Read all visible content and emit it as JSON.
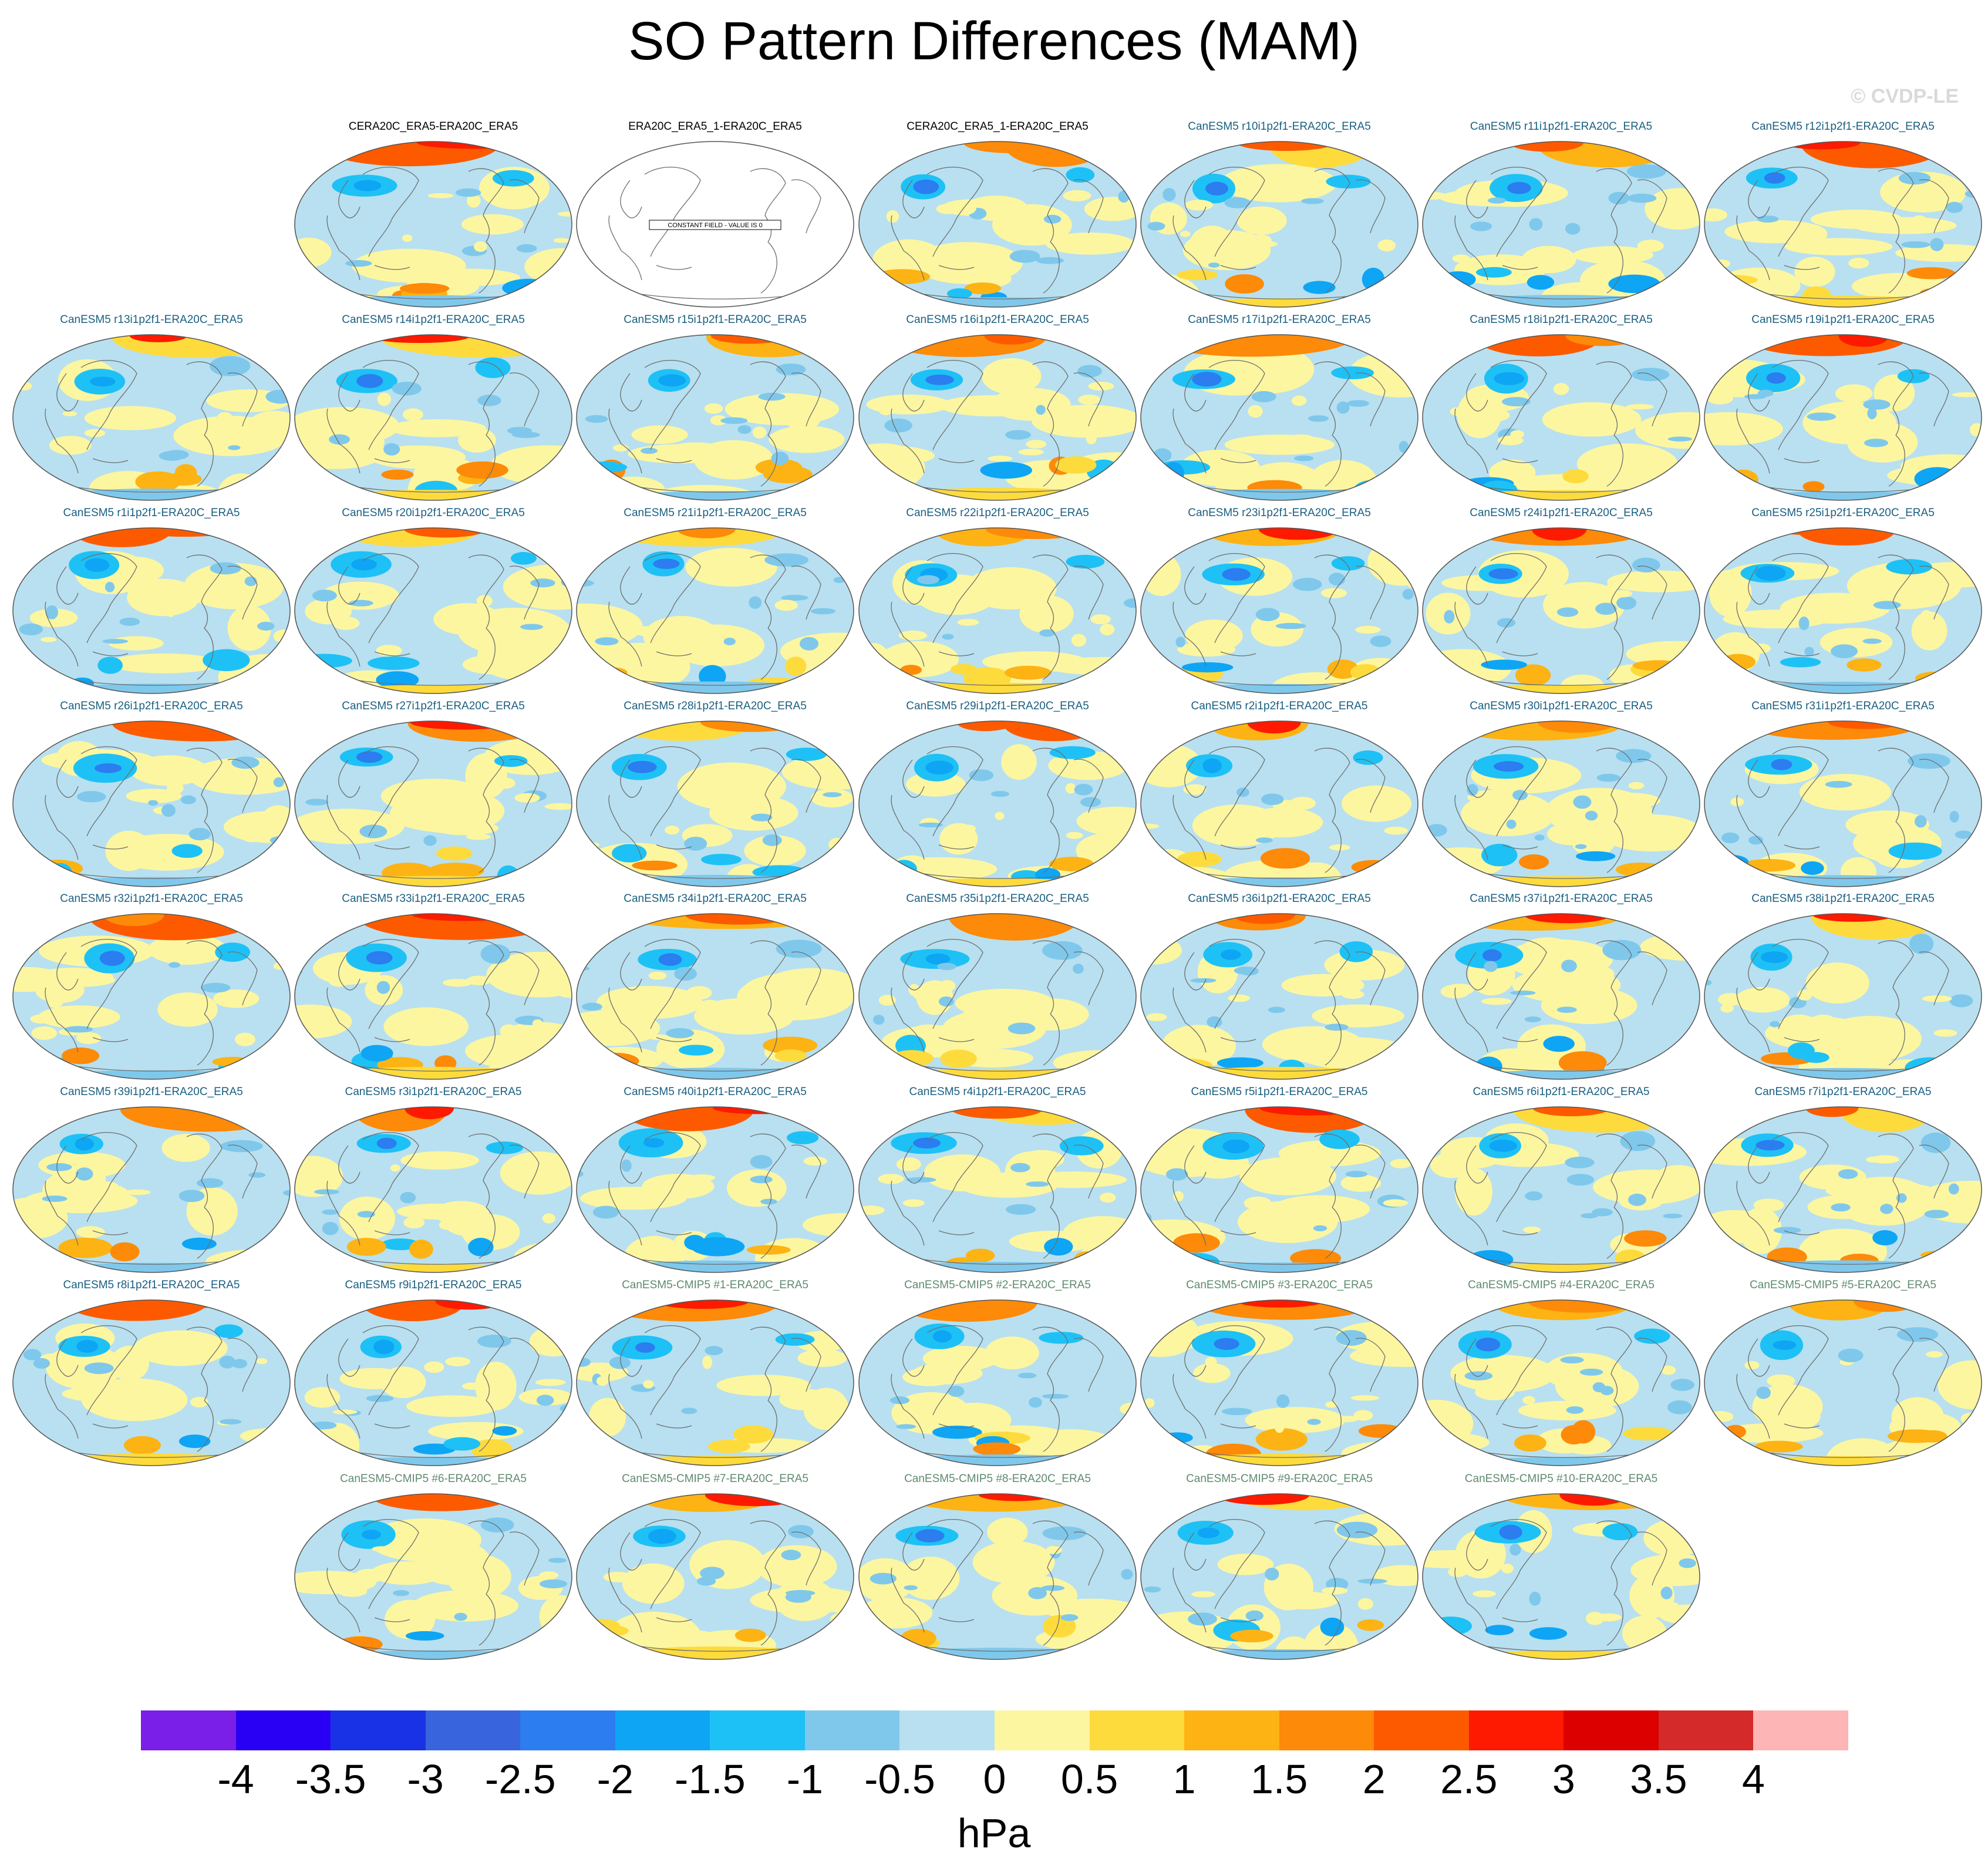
{
  "title": "SO Pattern Differences (MAM)",
  "copyright": "© CVDP-LE",
  "constant_field_label": "CONSTANT FIELD - VALUE IS 0",
  "panel_rows": [
    [
      "",
      "CERA20C_ERA5-ERA20C_ERA5",
      "ERA20C_ERA5_1-ERA20C_ERA5",
      "CERA20C_ERA5_1-ERA20C_ERA5",
      "CanESM5 r10i1p2f1-ERA20C_ERA5",
      "CanESM5 r11i1p2f1-ERA20C_ERA5",
      "CanESM5 r12i1p2f1-ERA20C_ERA5"
    ],
    [
      "CanESM5 r13i1p2f1-ERA20C_ERA5",
      "CanESM5 r14i1p2f1-ERA20C_ERA5",
      "CanESM5 r15i1p2f1-ERA20C_ERA5",
      "CanESM5 r16i1p2f1-ERA20C_ERA5",
      "CanESM5 r17i1p2f1-ERA20C_ERA5",
      "CanESM5 r18i1p2f1-ERA20C_ERA5",
      "CanESM5 r19i1p2f1-ERA20C_ERA5"
    ],
    [
      "CanESM5 r1i1p2f1-ERA20C_ERA5",
      "CanESM5 r20i1p2f1-ERA20C_ERA5",
      "CanESM5 r21i1p2f1-ERA20C_ERA5",
      "CanESM5 r22i1p2f1-ERA20C_ERA5",
      "CanESM5 r23i1p2f1-ERA20C_ERA5",
      "CanESM5 r24i1p2f1-ERA20C_ERA5",
      "CanESM5 r25i1p2f1-ERA20C_ERA5"
    ],
    [
      "CanESM5 r26i1p2f1-ERA20C_ERA5",
      "CanESM5 r27i1p2f1-ERA20C_ERA5",
      "CanESM5 r28i1p2f1-ERA20C_ERA5",
      "CanESM5 r29i1p2f1-ERA20C_ERA5",
      "CanESM5 r2i1p2f1-ERA20C_ERA5",
      "CanESM5 r30i1p2f1-ERA20C_ERA5",
      "CanESM5 r31i1p2f1-ERA20C_ERA5"
    ],
    [
      "CanESM5 r32i1p2f1-ERA20C_ERA5",
      "CanESM5 r33i1p2f1-ERA20C_ERA5",
      "CanESM5 r34i1p2f1-ERA20C_ERA5",
      "CanESM5 r35i1p2f1-ERA20C_ERA5",
      "CanESM5 r36i1p2f1-ERA20C_ERA5",
      "CanESM5 r37i1p2f1-ERA20C_ERA5",
      "CanESM5 r38i1p2f1-ERA20C_ERA5"
    ],
    [
      "CanESM5 r39i1p2f1-ERA20C_ERA5",
      "CanESM5 r3i1p2f1-ERA20C_ERA5",
      "CanESM5 r40i1p2f1-ERA20C_ERA5",
      "CanESM5 r4i1p2f1-ERA20C_ERA5",
      "CanESM5 r5i1p2f1-ERA20C_ERA5",
      "CanESM5 r6i1p2f1-ERA20C_ERA5",
      "CanESM5 r7i1p2f1-ERA20C_ERA5"
    ],
    [
      "CanESM5 r8i1p2f1-ERA20C_ERA5",
      "CanESM5 r9i1p2f1-ERA20C_ERA5",
      "CanESM5-CMIP5 #1-ERA20C_ERA5",
      "CanESM5-CMIP5 #2-ERA20C_ERA5",
      "CanESM5-CMIP5 #3-ERA20C_ERA5",
      "CanESM5-CMIP5 #4-ERA20C_ERA5",
      "CanESM5-CMIP5 #5-ERA20C_ERA5"
    ],
    [
      "",
      "CanESM5-CMIP5 #6-ERA20C_ERA5",
      "CanESM5-CMIP5 #7-ERA20C_ERA5",
      "CanESM5-CMIP5 #8-ERA20C_ERA5",
      "CanESM5-CMIP5 #9-ERA20C_ERA5",
      "CanESM5-CMIP5 #10-ERA20C_ERA5",
      ""
    ]
  ],
  "colorbar": {
    "labels": [
      "-4",
      "-3.5",
      "-3",
      "-2.5",
      "-2",
      "-1.5",
      "-1",
      "-0.5",
      "0",
      "0.5",
      "1",
      "1.5",
      "2",
      "2.5",
      "3",
      "3.5",
      "4"
    ],
    "levels": [
      -4,
      -3.5,
      -3,
      -2.5,
      -2,
      -1.5,
      -1,
      -0.5,
      0,
      0.5,
      1,
      1.5,
      2,
      2.5,
      3,
      3.5,
      4
    ],
    "colors": [
      "#7a1fe8",
      "#2a00f5",
      "#1a32e6",
      "#3864dd",
      "#2b7df0",
      "#0ea5f5",
      "#1ec1f5",
      "#7fc8ec",
      "#b8e0f0",
      "#fdf6a0",
      "#fedb3c",
      "#fdb313",
      "#fd8a08",
      "#fd5a00",
      "#fd1a00",
      "#dc0000",
      "#d42a2a",
      "#fdb5b5"
    ],
    "units": "hPa"
  }
}
